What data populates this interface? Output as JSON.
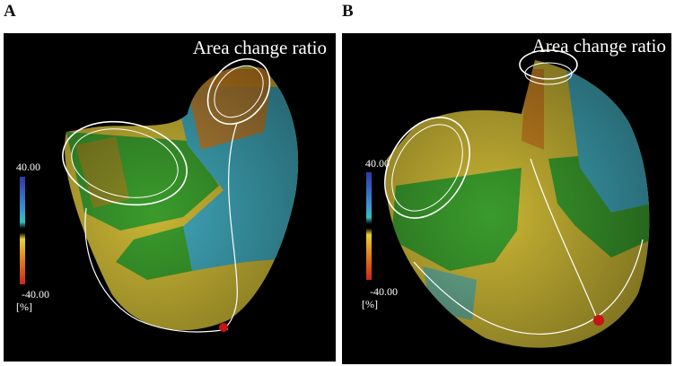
{
  "panels": [
    {
      "letter": "A",
      "title": "Area change ratio",
      "scale_max": "40.00",
      "scale_min": "-40.00",
      "unit": "[%]"
    },
    {
      "letter": "B",
      "title": "Area change ratio",
      "scale_max": "40.00",
      "scale_min": "-40.00",
      "unit": "[%]"
    }
  ],
  "colorbar_colors": [
    "#2b3aa8",
    "#3f8fd0",
    "#35c0c0",
    "#e6d23a",
    "#e07a20",
    "#c92818"
  ],
  "surface_colors": {
    "yellow": "#c9b534",
    "green": "#3a9b2c",
    "cyan": "#3fa6b8",
    "orange": "#c77a1e",
    "marker": "#c81414",
    "wireframe": "#ffffff"
  }
}
